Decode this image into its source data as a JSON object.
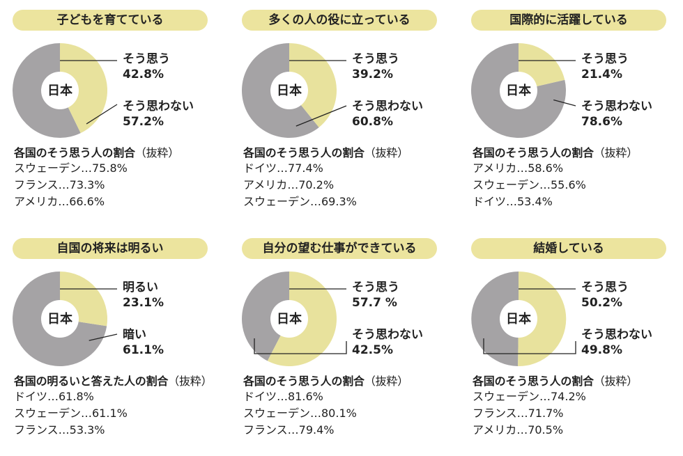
{
  "colors": {
    "yes": "#e8e29d",
    "no": "#a5a3a5",
    "pill": "#ece49e",
    "line": "#222222"
  },
  "chart_data": [
    {
      "type": "pie",
      "title": "子どもを育てている",
      "center_label": "日本",
      "slices": [
        {
          "label": "そう思う",
          "value": 42.8,
          "display": "42.8%"
        },
        {
          "label": "そう思わない",
          "value": 57.2,
          "display": "57.2%"
        }
      ],
      "ranking_title": "各国のそう思う人の割合",
      "ranking_note": "（抜粋）",
      "ranking": [
        "スウェーデン…75.8%",
        "フランス…73.3%",
        "アメリカ…66.6%"
      ]
    },
    {
      "type": "pie",
      "title": "多くの人の役に立っている",
      "center_label": "日本",
      "slices": [
        {
          "label": "そう思う",
          "value": 39.2,
          "display": "39.2%"
        },
        {
          "label": "そう思わない",
          "value": 60.8,
          "display": "60.8%"
        }
      ],
      "ranking_title": "各国のそう思う人の割合",
      "ranking_note": "（抜粋）",
      "ranking": [
        "ドイツ…77.4%",
        "アメリカ…70.2%",
        "スウェーデン…69.3%"
      ]
    },
    {
      "type": "pie",
      "title": "国際的に活躍している",
      "center_label": "日本",
      "slices": [
        {
          "label": "そう思う",
          "value": 21.4,
          "display": "21.4%"
        },
        {
          "label": "そう思わない",
          "value": 78.6,
          "display": "78.6%"
        }
      ],
      "ranking_title": "各国のそう思う人の割合",
      "ranking_note": "（抜粋）",
      "ranking": [
        "アメリカ…58.6%",
        "スウェーデン…55.6%",
        "ドイツ…53.4%"
      ]
    },
    {
      "type": "pie",
      "title": "自国の将来は明るい",
      "center_label": "日本",
      "slices": [
        {
          "label": "明るい",
          "value": 23.1,
          "display": "23.1%"
        },
        {
          "label": "暗い",
          "value": 61.1,
          "display": "61.1%"
        }
      ],
      "ranking_title": "各国の明るいと答えた人の割合",
      "ranking_note": "（抜粋）",
      "ranking": [
        "ドイツ…61.8%",
        "スウェーデン…61.1%",
        "フランス…53.3%"
      ]
    },
    {
      "type": "pie",
      "title": "自分の望む仕事ができている",
      "center_label": "日本",
      "slices": [
        {
          "label": "そう思う",
          "value": 57.7,
          "display": "57.7 %"
        },
        {
          "label": "そう思わない",
          "value": 42.5,
          "display": "42.5%"
        }
      ],
      "ranking_title": "各国のそう思う人の割合",
      "ranking_note": "（抜粋）",
      "ranking": [
        "ドイツ…81.6%",
        "スウェーデン…80.1%",
        "フランス…79.4%"
      ]
    },
    {
      "type": "pie",
      "title": "結婚している",
      "center_label": "日本",
      "slices": [
        {
          "label": "そう思う",
          "value": 50.2,
          "display": "50.2%"
        },
        {
          "label": "そう思わない",
          "value": 49.8,
          "display": "49.8%"
        }
      ],
      "ranking_title": "各国のそう思う人の割合",
      "ranking_note": "（抜粋）",
      "ranking": [
        "スウェーデン…74.2%",
        "フランス…71.7%",
        "アメリカ…70.5%"
      ]
    }
  ]
}
